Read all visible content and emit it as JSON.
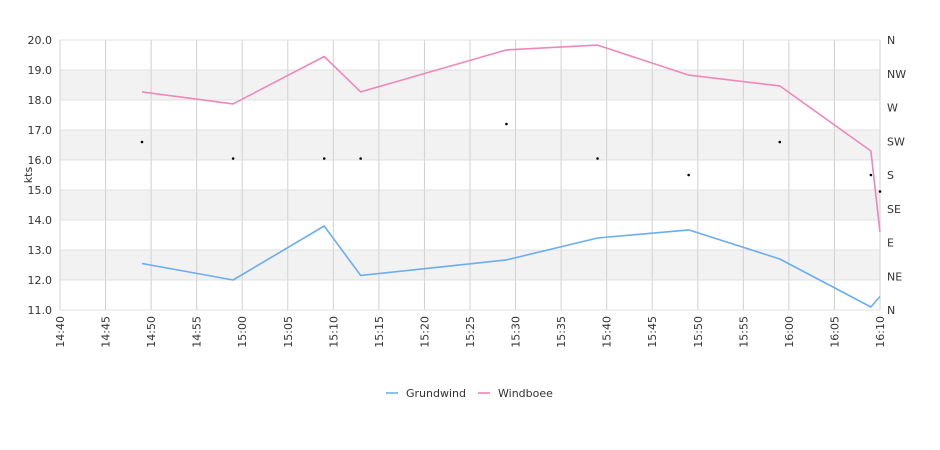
{
  "chart_data": {
    "type": "line",
    "ylabel": "kts",
    "ylim": [
      11.0,
      20.0
    ],
    "yticks": [
      "11.0",
      "12.0",
      "13.0",
      "14.0",
      "15.0",
      "16.0",
      "17.0",
      "18.0",
      "19.0",
      "20.0"
    ],
    "xticks": [
      "14:40",
      "14:45",
      "14:50",
      "14:55",
      "15:00",
      "15:05",
      "15:10",
      "15:15",
      "15:20",
      "15:25",
      "15:30",
      "15:35",
      "15:40",
      "15:45",
      "15:50",
      "15:55",
      "16:00",
      "16:05",
      "16:10"
    ],
    "xrange": [
      "14:40",
      "16:10"
    ],
    "right_axis_labels": [
      "N",
      "NE",
      "E",
      "SE",
      "S",
      "SW",
      "W",
      "NW",
      "N"
    ],
    "grid": true,
    "legend_position": "bottom-center",
    "series": [
      {
        "name": "Grundwind",
        "color": "#6aaef0",
        "x": [
          "14:49",
          "14:59",
          "15:09",
          "15:13",
          "15:29",
          "15:39",
          "15:49",
          "15:59",
          "16:09",
          "16:10"
        ],
        "y": [
          12.55,
          12.0,
          13.8,
          12.15,
          12.67,
          13.4,
          13.67,
          12.7,
          11.1,
          11.45
        ]
      },
      {
        "name": "Windboee",
        "color": "#ee88bb",
        "x": [
          "14:49",
          "14:59",
          "15:09",
          "15:13",
          "15:29",
          "15:39",
          "15:49",
          "15:59",
          "16:09",
          "16:10"
        ],
        "y": [
          18.27,
          17.87,
          19.45,
          18.27,
          19.67,
          19.83,
          18.83,
          18.47,
          16.3,
          13.6
        ]
      }
    ],
    "direction_markers": {
      "x": [
        "14:49",
        "14:59",
        "15:09",
        "15:13",
        "15:29",
        "15:39",
        "15:49",
        "15:59",
        "16:09",
        "16:10"
      ],
      "y": [
        16.6,
        16.05,
        16.05,
        16.05,
        17.2,
        16.05,
        15.5,
        16.6,
        15.5,
        14.95
      ]
    }
  }
}
